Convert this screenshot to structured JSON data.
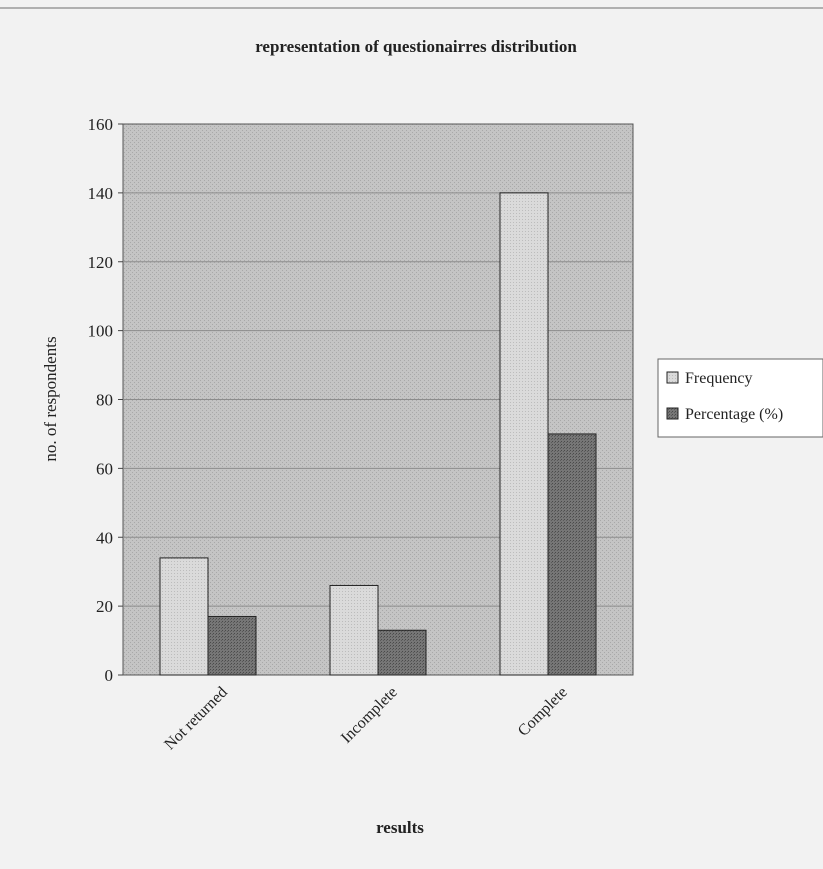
{
  "chart_data": {
    "type": "bar",
    "title": "representation of questionairres distribution",
    "xlabel": "results",
    "ylabel": "no. of respondents",
    "categories": [
      "Not returned",
      "Incomplete",
      "Complete"
    ],
    "series": [
      {
        "name": "Frequency",
        "values": [
          34,
          26,
          140
        ]
      },
      {
        "name": "Percentage (%)",
        "values": [
          17,
          13,
          70
        ]
      }
    ],
    "ylim": [
      0,
      160
    ],
    "yticks": [
      0,
      20,
      40,
      60,
      80,
      100,
      120,
      140,
      160
    ],
    "grid": true,
    "legend": "right",
    "colors": {
      "plot_background": "#bdbdbd",
      "frequency": "#d8d8d8",
      "percentage": "#6e6e6e",
      "gridline": "#9a9a9a"
    }
  }
}
